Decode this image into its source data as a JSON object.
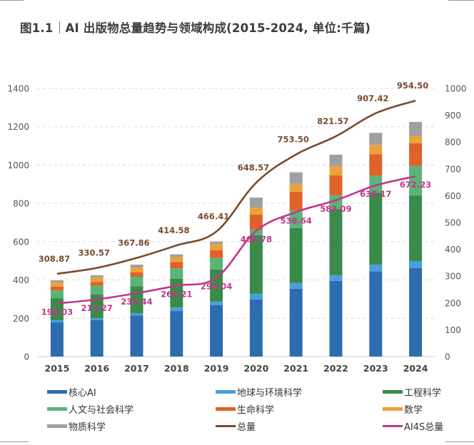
{
  "title": {
    "figure_no": "图1.1",
    "text": "AI 出版物总量趋势与领域构成(2015-2024, 单位:千篇)"
  },
  "chart_data": {
    "type": "bar",
    "stacked": true,
    "title": "AI 出版物总量趋势与领域构成(2015-2024, 单位:千篇)",
    "xlabel": "",
    "ylabel": "",
    "categories": [
      "2015",
      "2016",
      "2017",
      "2018",
      "2019",
      "2020",
      "2021",
      "2022",
      "2023",
      "2024"
    ],
    "left_axis": {
      "ylim": [
        0,
        1400
      ],
      "ticks": [
        0,
        200,
        400,
        600,
        800,
        1000,
        1200,
        1400
      ]
    },
    "right_axis": {
      "ylim": [
        0,
        1000
      ],
      "ticks": [
        0,
        100,
        200,
        300,
        400,
        500,
        600,
        700,
        800,
        900,
        1000
      ]
    },
    "grid": true,
    "legend_position": "bottom",
    "series": [
      {
        "name": "核心AI",
        "kind": "bar",
        "axis": "left",
        "color": "#2e6cb0",
        "values": [
          179,
          190,
          215,
          238,
          268,
          298,
          354,
          395,
          443,
          462
        ]
      },
      {
        "name": "地球与环境科学",
        "kind": "bar",
        "axis": "left",
        "color": "#4a9ede",
        "values": [
          11,
          10,
          12,
          18,
          19,
          30,
          30,
          30,
          37,
          37
        ]
      },
      {
        "name": "工程科学",
        "kind": "bar",
        "axis": "left",
        "color": "#3a8a4a",
        "values": [
          115,
          125,
          140,
          150,
          168,
          305,
          287,
          346,
          376,
          343
        ]
      },
      {
        "name": "人文与社会科学",
        "kind": "bar",
        "axis": "left",
        "color": "#5cb37a",
        "values": [
          41,
          45,
          50,
          55,
          60,
          30,
          93,
          71,
          89,
          153
        ]
      },
      {
        "name": "生命科学",
        "kind": "bar",
        "axis": "left",
        "color": "#e0612a",
        "values": [
          19,
          20,
          23,
          33,
          41,
          78,
          97,
          104,
          112,
          119
        ]
      },
      {
        "name": "数学",
        "kind": "bar",
        "axis": "left",
        "color": "#eca23a",
        "values": [
          22,
          22,
          25,
          25,
          30,
          37,
          41,
          48,
          48,
          37
        ]
      },
      {
        "name": "物质科学",
        "kind": "bar",
        "axis": "left",
        "color": "#a0a0a0",
        "values": [
          11,
          13,
          15,
          15,
          15,
          52,
          60,
          60,
          63,
          74
        ]
      },
      {
        "name": "总量",
        "kind": "line",
        "axis": "right",
        "color": "#7b4a2c",
        "values": [
          308.87,
          330.57,
          367.86,
          414.58,
          466.41,
          648.57,
          753.5,
          821.57,
          907.42,
          954.5
        ],
        "labels": [
          "308.87",
          "330.57",
          "367.86",
          "414.58",
          "466.41",
          "648.57",
          "753.50",
          "821.57",
          "907.42",
          "954.50"
        ]
      },
      {
        "name": "AI4S总量",
        "kind": "line",
        "axis": "right",
        "color": "#c2378a",
        "values": [
          198.03,
          213.27,
          236.44,
          264.21,
          294.04,
          468.78,
          538.64,
          583.09,
          638.17,
          672.23
        ],
        "labels": [
          "198.03",
          "213.27",
          "236.44",
          "264.21",
          "294.04",
          "468.78",
          "538.64",
          "583.09",
          "638.17",
          "672.23"
        ]
      }
    ]
  }
}
